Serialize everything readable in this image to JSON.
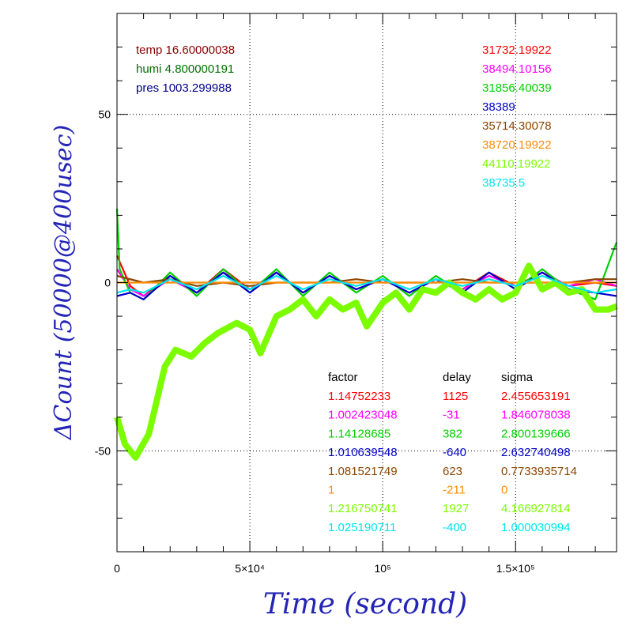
{
  "chart_data": {
    "type": "line",
    "title": "",
    "xlabel": "Time (second)",
    "ylabel": "ΔCount (50000@400usec)",
    "xlim": [
      0,
      188000
    ],
    "ylim": [
      -80,
      80
    ],
    "grid": true,
    "x_ticks": [
      {
        "value": 0,
        "label": "0"
      },
      {
        "value": 50000,
        "label": "5×10⁴"
      },
      {
        "value": 100000,
        "label": "10⁵"
      },
      {
        "value": 150000,
        "label": "1.5×10⁵"
      }
    ],
    "y_ticks": [
      {
        "value": 50,
        "label": "50"
      },
      {
        "value": 0,
        "label": "0"
      },
      {
        "value": -50,
        "label": "-50"
      }
    ],
    "environment": [
      {
        "text": "temp 16.60000038",
        "color": "#8b0000"
      },
      {
        "text": "humi 4.800000191",
        "color": "#007000"
      },
      {
        "text": "pres 1003.299988",
        "color": "#00008b"
      }
    ],
    "series": [
      {
        "color": "#ff0000",
        "offset": "31732.19922",
        "factor": "1.14752233",
        "delay": "1125",
        "sigma": "2.455653191",
        "x": [
          0,
          5000,
          10000,
          20000,
          30000,
          40000,
          50000,
          60000,
          70000,
          80000,
          90000,
          100000,
          110000,
          120000,
          130000,
          140000,
          150000,
          160000,
          170000,
          180000,
          188000
        ],
        "y": [
          8,
          -1,
          -4,
          2,
          -3,
          4,
          -2,
          3,
          -3,
          2,
          -2,
          1,
          -3,
          1,
          -2,
          3,
          -1,
          3,
          -1,
          0,
          -1
        ]
      },
      {
        "color": "#ff00ff",
        "offset": "38494.10156",
        "factor": "1.002423048",
        "delay": "-31",
        "sigma": "1.846078038",
        "x": [
          0,
          5000,
          10000,
          20000,
          30000,
          40000,
          50000,
          60000,
          70000,
          80000,
          90000,
          100000,
          110000,
          120000,
          130000,
          140000,
          150000,
          160000,
          170000,
          180000,
          188000
        ],
        "y": [
          4,
          -2,
          -4,
          1,
          -3,
          3,
          -2,
          3,
          -3,
          2,
          -2,
          1,
          -3,
          1,
          -2,
          2,
          -1,
          3,
          -1,
          1,
          -1
        ]
      },
      {
        "color": "#00d000",
        "offset": "31856.40039",
        "factor": "1.14128685",
        "delay": "382",
        "sigma": "2.800139666",
        "x": [
          0,
          1000,
          5000,
          10000,
          20000,
          30000,
          40000,
          50000,
          60000,
          70000,
          80000,
          90000,
          100000,
          110000,
          120000,
          130000,
          140000,
          150000,
          160000,
          170000,
          180000,
          188000
        ],
        "y": [
          22,
          4,
          -3,
          -5,
          3,
          -4,
          4,
          -3,
          4,
          -4,
          3,
          -3,
          2,
          -4,
          2,
          -3,
          3,
          -2,
          4,
          -2,
          -5,
          12
        ]
      },
      {
        "color": "#0000cc",
        "offset": "38389",
        "factor": "1.010639548",
        "delay": "-640",
        "sigma": "2.632740498",
        "x": [
          0,
          5000,
          10000,
          20000,
          30000,
          40000,
          50000,
          60000,
          70000,
          80000,
          90000,
          100000,
          110000,
          120000,
          130000,
          140000,
          150000,
          160000,
          170000,
          180000,
          188000
        ],
        "y": [
          -4,
          -3,
          -5,
          2,
          -3,
          3,
          -3,
          3,
          -3,
          2,
          -2,
          1,
          -3,
          1,
          -3,
          3,
          -2,
          3,
          -2,
          -3,
          -4
        ]
      },
      {
        "color": "#8b4500",
        "offset": "35714.30078",
        "factor": "1.081521749",
        "delay": "623",
        "sigma": "0.7733935714",
        "x": [
          0,
          10000,
          20000,
          30000,
          40000,
          50000,
          60000,
          70000,
          80000,
          90000,
          100000,
          110000,
          120000,
          130000,
          140000,
          150000,
          160000,
          170000,
          180000,
          188000
        ],
        "y": [
          2,
          0,
          1,
          -1,
          0,
          -1,
          0,
          0,
          0,
          1,
          0,
          0,
          0,
          1,
          0,
          0,
          0,
          0,
          1,
          1
        ]
      },
      {
        "color": "#ff8c00",
        "offset": "38720.19922",
        "factor": "1",
        "delay": "-211",
        "sigma": "0",
        "x": [
          0,
          188000
        ],
        "y": [
          0,
          0
        ]
      },
      {
        "color": "#7cfc00",
        "offset": "44110.19922",
        "factor": "1.216750741",
        "delay": "1927",
        "sigma": "4.166927814",
        "x": [
          0,
          3000,
          7000,
          12000,
          18000,
          22000,
          28000,
          33000,
          38000,
          45000,
          50000,
          54000,
          60000,
          65000,
          70000,
          75000,
          80000,
          85000,
          90000,
          94000,
          100000,
          105000,
          110000,
          115000,
          120000,
          125000,
          130000,
          135000,
          140000,
          145000,
          150000,
          155000,
          160000,
          165000,
          170000,
          175000,
          180000,
          185000,
          188000
        ],
        "y": [
          -40,
          -48,
          -52,
          -45,
          -25,
          -20,
          -22,
          -18,
          -15,
          -12,
          -14,
          -21,
          -10,
          -8,
          -5,
          -10,
          -5,
          -8,
          -6,
          -13,
          -6,
          -3,
          -8,
          -2,
          -3,
          0,
          -3,
          -5,
          -2,
          -5,
          -3,
          5,
          -2,
          0,
          -3,
          -2,
          -8,
          -8,
          -7
        ]
      },
      {
        "color": "#00e5ee",
        "offset": "38735.5",
        "factor": "1.025190711",
        "delay": "-400",
        "sigma": "1.000030994",
        "x": [
          0,
          5000,
          10000,
          20000,
          30000,
          40000,
          50000,
          60000,
          70000,
          80000,
          90000,
          100000,
          110000,
          120000,
          130000,
          140000,
          150000,
          160000,
          170000,
          180000,
          188000
        ],
        "y": [
          -3,
          -2,
          -3,
          1,
          -2,
          2,
          -2,
          2,
          -2,
          1,
          -1,
          1,
          -2,
          1,
          -1,
          1,
          -1,
          2,
          -1,
          -3,
          -2
        ]
      }
    ],
    "table_headers": {
      "factor": "factor",
      "delay": "delay",
      "sigma": "sigma"
    }
  }
}
